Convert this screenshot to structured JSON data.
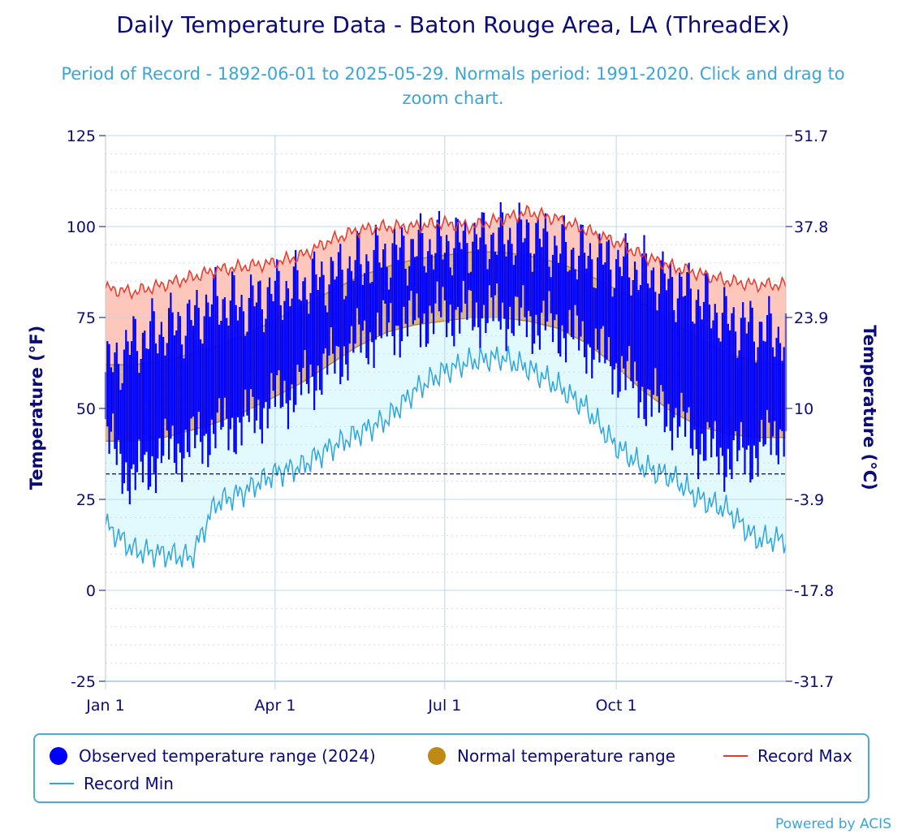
{
  "chart_data": {
    "type": "area",
    "title": "Daily Temperature Data - Baton Rouge Area, LA (ThreadEx)",
    "subtitle": "Period of Record - 1892-06-01 to 2025-05-29. Normals period: 1991-2020. Click and drag to zoom chart.",
    "ylabel": "Temperature (°F)",
    "y2label": "Temperature (°C)",
    "ylim": [
      -25,
      125
    ],
    "y_ticks": [
      "125",
      "100",
      "75",
      "50",
      "25",
      "0",
      "-25"
    ],
    "y2_ticks": [
      "51.7",
      "37.8",
      "23.9",
      "10",
      "-3.9",
      "-17.8",
      "-31.7"
    ],
    "x_ticks": [
      "Jan 1",
      "Apr 1",
      "Jul 1",
      "Oct 1"
    ],
    "x_tick_days": [
      0,
      91,
      182,
      274
    ],
    "days_in_year": 366,
    "freeze_line": 32,
    "legend_position": "bottom",
    "normals": {
      "x_days": [
        0,
        15,
        31,
        46,
        59,
        74,
        90,
        105,
        120,
        135,
        151,
        166,
        181,
        196,
        212,
        227,
        243,
        258,
        273,
        288,
        304,
        319,
        334,
        349,
        365
      ],
      "high": [
        62,
        62,
        63,
        65,
        67,
        70,
        74,
        78,
        82,
        86,
        89,
        91,
        92,
        93,
        93,
        92,
        90,
        87,
        83,
        79,
        74,
        69,
        65,
        63,
        62
      ],
      "low": [
        41,
        41,
        42,
        44,
        46,
        49,
        53,
        57,
        62,
        67,
        71,
        73,
        74,
        75,
        75,
        74,
        72,
        68,
        62,
        55,
        49,
        45,
        43,
        42,
        42
      ]
    },
    "series": [
      {
        "name": "Record Max",
        "x_days": [
          0,
          15,
          31,
          46,
          59,
          74,
          90,
          105,
          120,
          135,
          151,
          166,
          181,
          196,
          212,
          227,
          243,
          258,
          273,
          288,
          304,
          319,
          334,
          349,
          365
        ],
        "values": [
          83,
          82,
          84,
          86,
          88,
          89,
          90,
          92,
          96,
          99,
          100,
          100,
          101,
          100,
          102,
          104,
          102,
          99,
          96,
          92,
          89,
          87,
          85,
          84,
          84
        ]
      },
      {
        "name": "Record Min",
        "x_days": [
          0,
          15,
          31,
          46,
          59,
          74,
          90,
          105,
          120,
          135,
          151,
          166,
          181,
          196,
          212,
          227,
          243,
          258,
          273,
          288,
          304,
          319,
          334,
          349,
          365
        ],
        "values": [
          18,
          11,
          10,
          9,
          24,
          27,
          32,
          34,
          39,
          43,
          47,
          55,
          60,
          63,
          64,
          61,
          56,
          50,
          40,
          34,
          31,
          25,
          22,
          14,
          14
        ]
      },
      {
        "name": "Observed temperature range (2024)",
        "x_days": [
          0,
          15,
          31,
          46,
          59,
          74,
          90,
          105,
          120,
          135,
          151,
          166,
          181,
          196,
          212,
          227,
          243,
          258,
          273,
          288,
          304,
          319,
          334,
          349,
          365
        ],
        "high": [
          60,
          68,
          72,
          74,
          80,
          78,
          82,
          84,
          86,
          90,
          92,
          94,
          95,
          96,
          97,
          98,
          94,
          92,
          90,
          88,
          84,
          80,
          74,
          72,
          70
        ],
        "low": [
          42,
          30,
          38,
          40,
          44,
          46,
          52,
          56,
          62,
          68,
          72,
          74,
          76,
          76,
          76,
          74,
          72,
          68,
          62,
          54,
          48,
          40,
          36,
          38,
          45
        ]
      }
    ],
    "colors": {
      "record_max": "#e8382b",
      "record_min": "#2aa6e0",
      "record_max_fill": "#ffc7bc",
      "record_min_fill": "#e2fafd",
      "normal_fill": "#dcb67e",
      "normal_line": "#b58a2a",
      "observed": "#0000ff",
      "freeze_line": "#0000aa",
      "axis": "#0b0b78",
      "grid": "#b8d6ea"
    }
  },
  "legend": {
    "observed": "Observed temperature range (2024)",
    "normal": "Normal temperature range",
    "record_max": "Record Max",
    "record_min": "Record Min"
  },
  "credit": "Powered by ACIS"
}
